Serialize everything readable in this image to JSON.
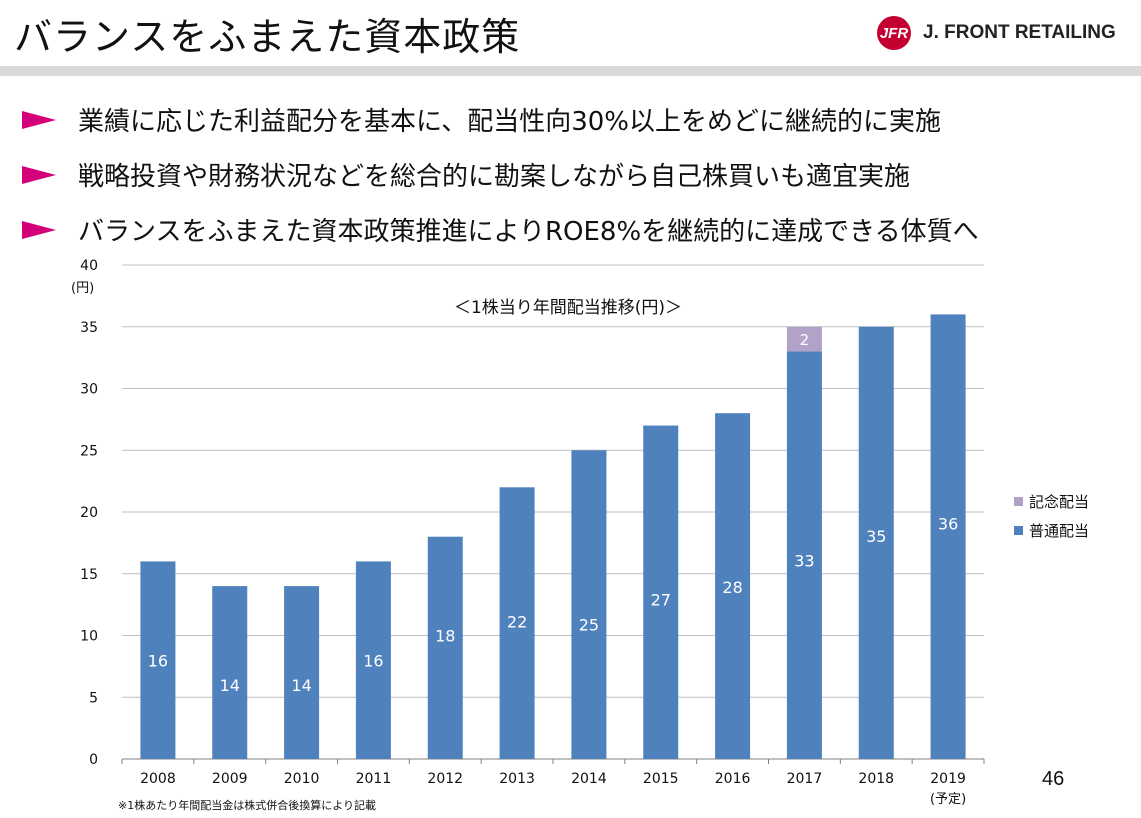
{
  "header": {
    "title": "バランスをふまえた資本政策",
    "logo_mark": "JFR",
    "logo_text": "J. FRONT RETAILING"
  },
  "bullets": [
    "業績に応じた利益配分を基本に、配当性向30%以上をめどに継続的に実施",
    "戦略投資や財務状況などを総合的に勘案しながら自己株買いも適宜実施",
    "バランスをふまえた資本政策推進によりROE8%を継続的に達成できる体質へ"
  ],
  "colors": {
    "accent": "#d4007a",
    "brand": "#c3002f",
    "ordinary": "#4f81bd",
    "commemorative": "#b3a2c7"
  },
  "chart_data": {
    "type": "bar",
    "title": "＜1株当り年間配当推移(円)＞",
    "ylabel": "(円)",
    "ylim": [
      0,
      40
    ],
    "yticks": [
      0,
      5,
      10,
      15,
      20,
      25,
      30,
      35,
      40
    ],
    "grid": true,
    "legend_position": "right",
    "categories": [
      "2008",
      "2009",
      "2010",
      "2011",
      "2012",
      "2013",
      "2014",
      "2015",
      "2016",
      "2017",
      "2018",
      "2019"
    ],
    "category_notes": [
      "",
      "",
      "",
      "",
      "",
      "",
      "",
      "",
      "",
      "",
      "",
      "(予定)"
    ],
    "series": [
      {
        "name": "普通配当",
        "values": [
          16,
          14,
          14,
          16,
          18,
          22,
          25,
          27,
          28,
          33,
          35,
          36
        ]
      },
      {
        "name": "記念配当",
        "values": [
          0,
          0,
          0,
          0,
          0,
          0,
          0,
          0,
          0,
          2,
          0,
          0
        ]
      }
    ]
  },
  "footer": {
    "note": "※1株あたり年間配当金は株式併合後換算により記載",
    "page_number": "46"
  }
}
